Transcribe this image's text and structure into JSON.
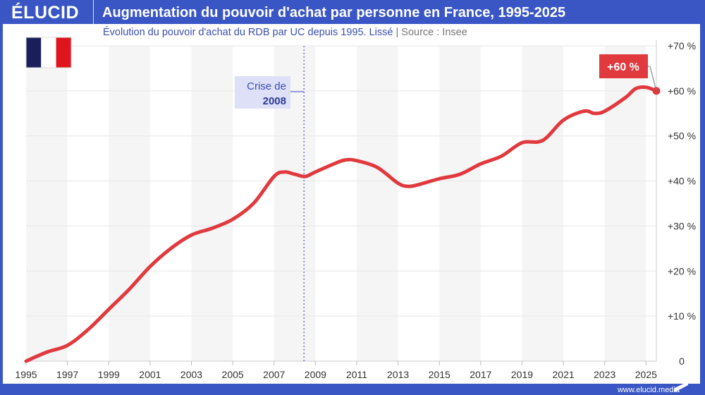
{
  "header": {
    "logo": "ÉLUCID",
    "title": "Augmentation du pouvoir d'achat par personne en France, 1995-2025"
  },
  "subtitle": {
    "text": "Évolution du pouvoir d'achat du RDB par UC depuis 1995. Lissé",
    "separator": "|",
    "source": "Source : Insee"
  },
  "footer": {
    "url": "www.elucid.media"
  },
  "flag": {
    "colors": [
      "#1a1f5c",
      "#ffffff",
      "#e0141c"
    ]
  },
  "colors": {
    "line": "#e0393e",
    "brand": "#3a56c5",
    "annotation_bg": "#dde0f6",
    "annotation_text": "#3d4fb0"
  },
  "chart_data": {
    "type": "line",
    "title": "Augmentation du pouvoir d'achat par personne en France, 1995-2025",
    "xlabel": "",
    "ylabel": "",
    "xlim": [
      1995,
      2025.5
    ],
    "ylim": [
      0,
      70
    ],
    "x_ticks": [
      "1995",
      "1997",
      "1999",
      "2001",
      "2003",
      "2005",
      "2007",
      "2009",
      "2011",
      "2013",
      "2015",
      "2017",
      "2019",
      "2021",
      "2023",
      "2025"
    ],
    "y_ticks": [
      "0",
      "+10 %",
      "+20 %",
      "+30 %",
      "+40 %",
      "+50 %",
      "+60 %",
      "+70 %"
    ],
    "y_axis_position": "right",
    "grid": true,
    "x": [
      1995,
      1996,
      1997,
      1998,
      1999,
      2000,
      2001,
      2002,
      2003,
      2004,
      2005,
      2006,
      2007,
      2007.5,
      2008,
      2008.5,
      2009,
      2010,
      2010.5,
      2011,
      2012,
      2013,
      2013.5,
      2014,
      2015,
      2016,
      2017,
      2018,
      2019,
      2020,
      2021,
      2022,
      2022.5,
      2023,
      2024,
      2024.5,
      2025,
      2025.5
    ],
    "y": [
      0,
      2,
      3.5,
      7,
      11.5,
      16,
      21,
      25,
      28,
      29.5,
      31.5,
      35,
      41,
      42,
      41.5,
      41,
      42,
      44,
      44.7,
      44.5,
      43,
      39.5,
      38.8,
      39.2,
      40.5,
      41.5,
      43.8,
      45.5,
      48.5,
      49,
      53.5,
      55.5,
      55,
      55.5,
      58.5,
      60.5,
      60.8,
      60
    ],
    "annotations": [
      {
        "label_line1": "Crise de",
        "label_line2": "2008",
        "x": 2008.45
      },
      {
        "label": "+60 %",
        "x": 2025.5,
        "y": 60
      }
    ]
  }
}
